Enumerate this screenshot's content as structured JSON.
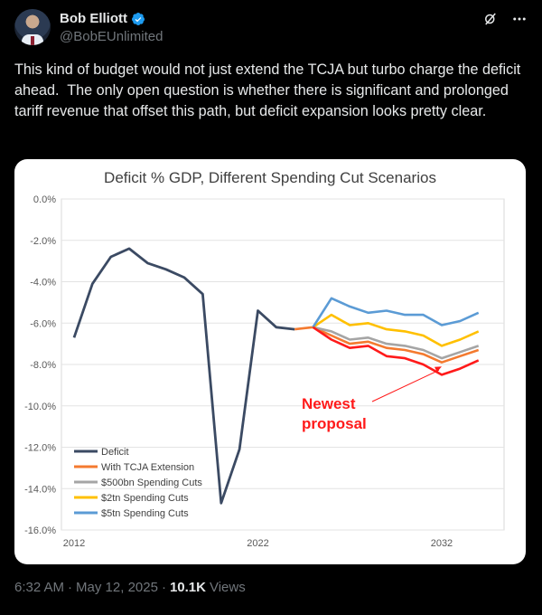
{
  "author": {
    "name": "Bob Elliott",
    "handle": "@BobEUnlimited",
    "verified_color": "#1d9bf0"
  },
  "icons": {
    "grok": "grok-icon",
    "more": "more-icon",
    "verified": "verified-badge-icon"
  },
  "tweet": {
    "text": "This kind of budget would not just extend the TCJA but turbo charge the deficit ahead.  The only open question is whether there is significant and prolonged tariff revenue that offset this path, but deficit expansion looks pretty clear."
  },
  "meta": {
    "time": "6:32 AM",
    "sep1": "·",
    "date": "May 12, 2025",
    "sep2": "·",
    "views_count": "10.1K",
    "views_label": "Views"
  },
  "chart_data": {
    "type": "line",
    "title": "Deficit % GDP, Different Spending Cut Scenarios",
    "ylim": [
      -16,
      0
    ],
    "yticks": [
      "0.0%",
      "-2.0%",
      "-4.0%",
      "-6.0%",
      "-8.0%",
      "-10.0%",
      "-12.0%",
      "-14.0%",
      "-16.0%"
    ],
    "xlim": [
      2012,
      2035
    ],
    "xticks": [
      "2012",
      "2022",
      "2032"
    ],
    "grid": true,
    "legend_position": "bottom-left",
    "annotation": {
      "text_line1": "Newest",
      "text_line2": "proposal",
      "color": "#ff1a1a",
      "points_to": {
        "x": 2032,
        "y": -8.1
      }
    },
    "series": [
      {
        "name": "Deficit",
        "color": "#3b4a63",
        "x": [
          2012,
          2013,
          2014,
          2015,
          2016,
          2017,
          2018,
          2019,
          2020,
          2021,
          2022,
          2023,
          2024
        ],
        "values": [
          -6.7,
          -4.1,
          -2.8,
          -2.4,
          -3.1,
          -3.4,
          -3.8,
          -4.6,
          -14.7,
          -12.1,
          -5.4,
          -6.2,
          -6.3
        ]
      },
      {
        "name": "With TCJA Extension",
        "color": "#f47a2f",
        "x": [
          2024,
          2025,
          2026,
          2027,
          2028,
          2029,
          2030,
          2031,
          2032,
          2033,
          2034
        ],
        "values": [
          -6.3,
          -6.2,
          -6.6,
          -7.0,
          -6.9,
          -7.2,
          -7.3,
          -7.5,
          -7.9,
          -7.6,
          -7.3
        ]
      },
      {
        "name": "$500bn Spending Cuts",
        "color": "#a5a5a5",
        "x": [
          2025,
          2026,
          2027,
          2028,
          2029,
          2030,
          2031,
          2032,
          2033,
          2034
        ],
        "values": [
          -6.2,
          -6.4,
          -6.8,
          -6.7,
          -7.0,
          -7.1,
          -7.3,
          -7.7,
          -7.4,
          -7.1
        ]
      },
      {
        "name": "$2tn Spending Cuts",
        "color": "#ffc000",
        "x": [
          2025,
          2026,
          2027,
          2028,
          2029,
          2030,
          2031,
          2032,
          2033,
          2034
        ],
        "values": [
          -6.2,
          -5.6,
          -6.1,
          -6.0,
          -6.3,
          -6.4,
          -6.6,
          -7.1,
          -6.8,
          -6.4
        ]
      },
      {
        "name": "$5tn Spending Cuts",
        "color": "#5b9bd5",
        "x": [
          2025,
          2026,
          2027,
          2028,
          2029,
          2030,
          2031,
          2032,
          2033,
          2034
        ],
        "values": [
          -6.2,
          -4.8,
          -5.2,
          -5.5,
          -5.4,
          -5.6,
          -5.6,
          -6.1,
          -5.9,
          -5.5
        ]
      },
      {
        "name": "",
        "color": "#ff1a1a",
        "x": [
          2025,
          2026,
          2027,
          2028,
          2029,
          2030,
          2031,
          2032,
          2033,
          2034
        ],
        "values": [
          -6.2,
          -6.8,
          -7.2,
          -7.1,
          -7.6,
          -7.7,
          -8.0,
          -8.5,
          -8.2,
          -7.8
        ]
      }
    ]
  }
}
